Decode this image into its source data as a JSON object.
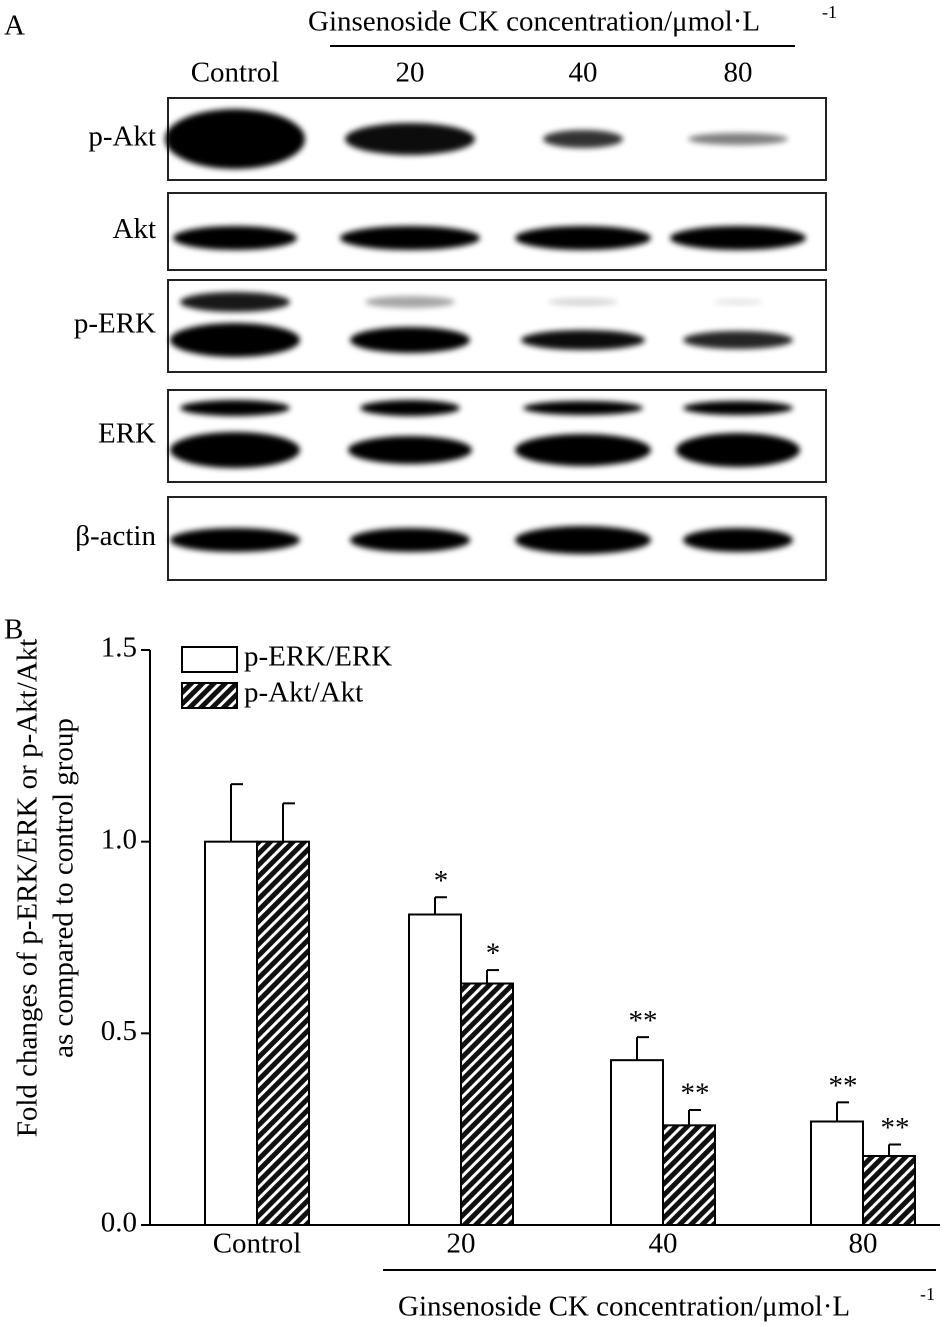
{
  "panel_a": {
    "label": "A",
    "header": "Ginsenoside CK concentration/μmol·L",
    "header_sup": "-1",
    "lanes": [
      "Control",
      "20",
      "40",
      "80"
    ],
    "rows": [
      "p-Akt",
      "Akt",
      "p-ERK",
      "ERK",
      "β-actin"
    ]
  },
  "chart_data": {
    "type": "bar",
    "panel_label": "B",
    "ylabel": [
      "Fold changes of p-ERK/ERK or p-Akt/Akt",
      "as compared to control group"
    ],
    "xlabel": "Ginsenoside CK concentration/μmol·L",
    "xlabel_sup": "-1",
    "categories": [
      "Control",
      "20",
      "40",
      "80"
    ],
    "series": [
      {
        "name": "p-ERK/ERK",
        "color": "#ffffff",
        "values": [
          1.0,
          0.81,
          0.43,
          0.27
        ],
        "errors": [
          0.15,
          0.045,
          0.06,
          0.05
        ],
        "annotations": [
          null,
          "*",
          "**",
          "**"
        ]
      },
      {
        "name": "p-Akt/Akt",
        "color": "hatch",
        "values": [
          1.0,
          0.63,
          0.26,
          0.18
        ],
        "errors": [
          0.1,
          0.035,
          0.04,
          0.03
        ],
        "annotations": [
          null,
          "*",
          "**",
          "**"
        ]
      }
    ],
    "ylim": [
      0,
      1.5
    ],
    "yticks": [
      {
        "value": 0,
        "label": "0.0"
      },
      0.5,
      {
        "value": 1,
        "label": "1.0"
      },
      {
        "value": 1.5,
        "label": "1.5"
      }
    ],
    "legend": "top-left"
  }
}
